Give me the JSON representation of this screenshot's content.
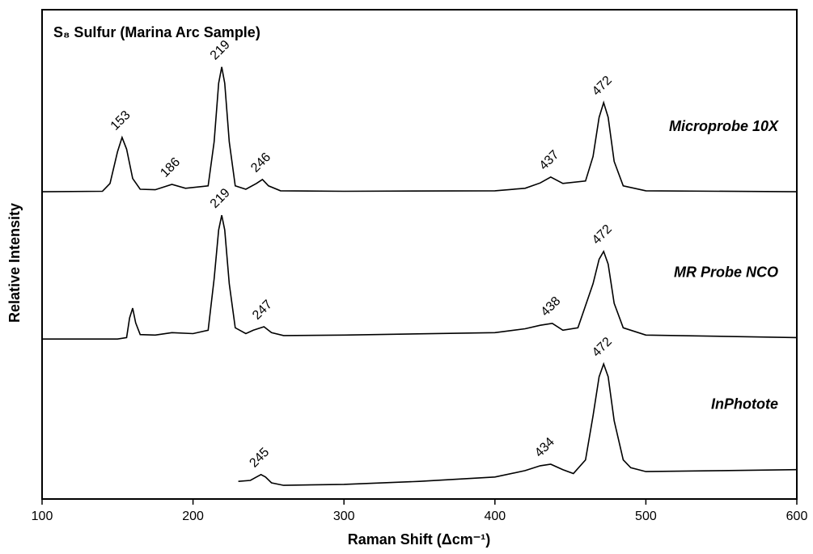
{
  "chart_data": {
    "type": "line",
    "title": "S₈ Sulfur (Marina Arc Sample)",
    "xlabel": "Raman Shift (Δcm⁻¹)",
    "ylabel": "Relative Intensity",
    "xlim": [
      100,
      600
    ],
    "xticks": [
      100,
      200,
      300,
      400,
      500,
      600
    ],
    "ylim": [
      0,
      100
    ],
    "series": [
      {
        "name": "Microprobe 10X",
        "color": "#000000",
        "x": [
          100,
          140,
          145,
          150,
          153,
          156,
          160,
          165,
          175,
          186,
          195,
          210,
          214,
          217,
          219,
          221,
          224,
          228,
          235,
          242,
          246,
          250,
          258,
          300,
          400,
          420,
          430,
          437,
          445,
          460,
          465,
          469,
          472,
          475,
          479,
          485,
          500,
          600
        ],
        "values": [
          62.8,
          62.9,
          64.5,
          71,
          73.9,
          71.5,
          65.5,
          63.3,
          63.2,
          64.3,
          63.5,
          64,
          73,
          85,
          88.3,
          85,
          73,
          64,
          63.3,
          64.5,
          65.3,
          64,
          63,
          62.9,
          63,
          63.5,
          64.6,
          65.8,
          64.5,
          65,
          70,
          78,
          81,
          78,
          69,
          64,
          63,
          62.8
        ],
        "peaks": [
          153,
          186,
          219,
          246,
          437,
          472
        ]
      },
      {
        "name": "MR Probe NCO",
        "color": "#000000",
        "x": [
          100,
          150,
          156,
          158,
          160,
          162,
          165,
          175,
          186,
          200,
          210,
          214,
          217,
          219,
          221,
          224,
          228,
          235,
          240,
          247,
          252,
          260,
          300,
          400,
          420,
          430,
          438,
          445,
          455,
          465,
          469,
          472,
          475,
          479,
          485,
          500,
          600
        ],
        "values": [
          32.7,
          32.7,
          33,
          37,
          39,
          36,
          33.6,
          33.5,
          34,
          33.8,
          34.5,
          45,
          55,
          58,
          55,
          44,
          35,
          33.8,
          34.5,
          35.2,
          34,
          33.4,
          33.5,
          34,
          34.8,
          35.5,
          35.9,
          34.5,
          35,
          44,
          49,
          50.6,
          48,
          40,
          35,
          33.5,
          33
        ],
        "peaks": [
          219,
          247,
          438,
          472
        ]
      },
      {
        "name": "InPhotote",
        "color": "#000000",
        "x": [
          230,
          238,
          242,
          245,
          248,
          252,
          260,
          300,
          350,
          400,
          420,
          430,
          437,
          445,
          452,
          460,
          465,
          469,
          472,
          475,
          479,
          485,
          490,
          500,
          550,
          600
        ],
        "values": [
          3.6,
          3.8,
          4.5,
          5,
          4.5,
          3.3,
          2.8,
          3.0,
          3.6,
          4.5,
          5.8,
          6.8,
          7.1,
          6.0,
          5.2,
          8,
          17,
          25,
          27.6,
          25,
          16,
          8,
          6.4,
          5.6,
          5.8,
          6.0
        ],
        "peaks": [
          245,
          434,
          472
        ]
      }
    ]
  }
}
